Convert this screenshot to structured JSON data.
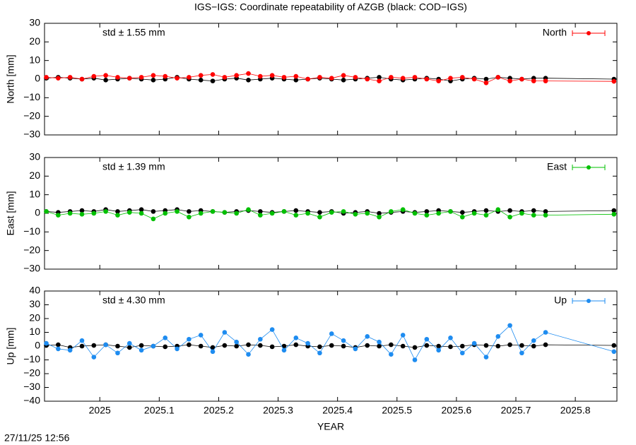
{
  "page": {
    "title": "IGS−IGS: Coordinate repeatability of AZGB (black: COD−IGS)",
    "timestamp": "27/11/25 12:56"
  },
  "chart_data": [
    {
      "type": "scatter",
      "ylabel": "North [mm]",
      "annotation": "std ± 1.55 mm",
      "legend": "upper right",
      "x": [
        2024.91,
        2024.93,
        2024.95,
        2024.97,
        2024.99,
        2025.01,
        2025.03,
        2025.05,
        2025.07,
        2025.09,
        2025.11,
        2025.13,
        2025.15,
        2025.17,
        2025.19,
        2025.21,
        2025.23,
        2025.25,
        2025.27,
        2025.29,
        2025.31,
        2025.33,
        2025.35,
        2025.37,
        2025.39,
        2025.41,
        2025.43,
        2025.45,
        2025.47,
        2025.49,
        2025.51,
        2025.53,
        2025.55,
        2025.57,
        2025.59,
        2025.61,
        2025.63,
        2025.65,
        2025.67,
        2025.69,
        2025.71,
        2025.73,
        2025.75,
        2025.865
      ],
      "xlim": [
        2024.907,
        2025.87
      ],
      "xticks": [
        2025,
        2025.1,
        2025.2,
        2025.3,
        2025.4,
        2025.5,
        2025.6,
        2025.7,
        2025.8
      ],
      "ylim": [
        -30,
        30
      ],
      "yticks": [
        {
          "value": -30,
          "label": "−30"
        },
        {
          "value": -20,
          "label": "−20"
        },
        {
          "value": -10,
          "label": "−10"
        },
        0,
        10,
        20,
        30
      ],
      "series": [
        {
          "color": "#000000",
          "values": [
            0.5,
            1,
            0.5,
            0,
            0.5,
            -0.5,
            0,
            0.5,
            0,
            -0.5,
            0,
            1,
            0,
            -0.5,
            -1,
            0,
            0.5,
            -0.5,
            0,
            0.5,
            0,
            -0.5,
            0,
            0.5,
            0,
            -0.5,
            0,
            0.5,
            1,
            0,
            -0.5,
            0,
            0.5,
            0,
            -1,
            0,
            0.5,
            0,
            1,
            0.5,
            0,
            0.5,
            0.5,
            0
          ]
        },
        {
          "name": "North",
          "color": "#ff0000",
          "values": [
            1,
            0.5,
            1,
            0,
            1.5,
            2,
            1,
            0.5,
            1,
            2,
            1.5,
            0.5,
            1,
            2,
            2.5,
            1,
            2,
            3,
            1.5,
            2,
            1,
            1.5,
            0,
            1,
            0.5,
            2,
            1,
            0,
            -1,
            1,
            0.5,
            1,
            0,
            -1,
            0.5,
            1,
            0,
            -2,
            1,
            -1,
            0,
            -1,
            -1,
            -1.2
          ]
        }
      ]
    },
    {
      "type": "scatter",
      "ylabel": "East [mm]",
      "annotation": "std ± 1.39 mm",
      "legend": "upper right",
      "x": [
        2024.91,
        2024.93,
        2024.95,
        2024.97,
        2024.99,
        2025.01,
        2025.03,
        2025.05,
        2025.07,
        2025.09,
        2025.11,
        2025.13,
        2025.15,
        2025.17,
        2025.19,
        2025.21,
        2025.23,
        2025.25,
        2025.27,
        2025.29,
        2025.31,
        2025.33,
        2025.35,
        2025.37,
        2025.39,
        2025.41,
        2025.43,
        2025.45,
        2025.47,
        2025.49,
        2025.51,
        2025.53,
        2025.55,
        2025.57,
        2025.59,
        2025.61,
        2025.63,
        2025.65,
        2025.67,
        2025.69,
        2025.71,
        2025.73,
        2025.75,
        2025.865
      ],
      "xlim": [
        2024.907,
        2025.87
      ],
      "xticks": [
        2025,
        2025.1,
        2025.2,
        2025.3,
        2025.4,
        2025.5,
        2025.6,
        2025.7,
        2025.8
      ],
      "ylim": [
        -30,
        30
      ],
      "yticks": [
        {
          "value": -30,
          "label": "−30"
        },
        {
          "value": -20,
          "label": "−20"
        },
        {
          "value": -10,
          "label": "−10"
        },
        0,
        10,
        20,
        30
      ],
      "series": [
        {
          "color": "#000000",
          "values": [
            1,
            0.5,
            1,
            1.5,
            1,
            2,
            1,
            1.5,
            2,
            1,
            1.5,
            2,
            1,
            1.5,
            1,
            0.5,
            1,
            1.5,
            1,
            0.5,
            1,
            1.5,
            1,
            0.5,
            1,
            0,
            0.5,
            1,
            0,
            0.5,
            1,
            0.5,
            1,
            1.5,
            1,
            0.5,
            1,
            1.5,
            1,
            1.5,
            1,
            1.5,
            1,
            1.5
          ]
        },
        {
          "name": "East",
          "color": "#00c000",
          "values": [
            1,
            -1,
            0,
            -0.5,
            0,
            1,
            -1,
            0.5,
            0,
            -3,
            0,
            1,
            -2,
            0,
            1,
            0.5,
            0,
            2,
            -1,
            0,
            1,
            -1,
            0,
            -2,
            0.5,
            1,
            -0.5,
            0,
            -2,
            1,
            2,
            0,
            -1,
            0,
            1,
            -2,
            0,
            -1,
            2,
            -2,
            0,
            -1,
            -1,
            -0.5
          ]
        }
      ]
    },
    {
      "type": "scatter",
      "ylabel": "Up [mm]",
      "annotation": "std ± 4.30 mm",
      "legend": "upper right",
      "xlabel": "YEAR",
      "x": [
        2024.91,
        2024.93,
        2024.95,
        2024.97,
        2024.99,
        2025.01,
        2025.03,
        2025.05,
        2025.07,
        2025.09,
        2025.11,
        2025.13,
        2025.15,
        2025.17,
        2025.19,
        2025.21,
        2025.23,
        2025.25,
        2025.27,
        2025.29,
        2025.31,
        2025.33,
        2025.35,
        2025.37,
        2025.39,
        2025.41,
        2025.43,
        2025.45,
        2025.47,
        2025.49,
        2025.51,
        2025.53,
        2025.55,
        2025.57,
        2025.59,
        2025.61,
        2025.63,
        2025.65,
        2025.67,
        2025.69,
        2025.71,
        2025.73,
        2025.75,
        2025.865
      ],
      "xlim": [
        2024.907,
        2025.87
      ],
      "xticks": [
        2025,
        2025.1,
        2025.2,
        2025.3,
        2025.4,
        2025.5,
        2025.6,
        2025.7,
        2025.8
      ],
      "ylim": [
        -40,
        40
      ],
      "yticks": [
        {
          "value": -40,
          "label": "−40"
        },
        {
          "value": -30,
          "label": "−30"
        },
        {
          "value": -20,
          "label": "−20"
        },
        {
          "value": -10,
          "label": "−10"
        },
        0,
        10,
        20,
        30,
        40
      ],
      "series": [
        {
          "color": "#000000",
          "values": [
            0.5,
            1,
            -1,
            0,
            0.5,
            1,
            0,
            -1,
            0.5,
            0,
            -0.5,
            0,
            1,
            0,
            -1,
            0.5,
            0,
            1,
            0.5,
            -0.5,
            0,
            1,
            0,
            -0.5,
            0.5,
            0,
            -1,
            0.5,
            0,
            1,
            0,
            -1,
            0.5,
            0,
            -0.5,
            0,
            1,
            0.5,
            0,
            1,
            0.5,
            0,
            1,
            0.5
          ]
        },
        {
          "name": "Up",
          "color": "#1e8cf0",
          "values": [
            2,
            -2,
            -3,
            4,
            -8,
            1,
            -5,
            2,
            -3,
            0,
            6,
            -2,
            5,
            8,
            -4,
            10,
            3,
            -6,
            5,
            12,
            -3,
            6,
            2,
            -5,
            9,
            4,
            -2,
            7,
            3,
            -6,
            8,
            -10,
            5,
            -3,
            6,
            -5,
            2,
            -8,
            7,
            15,
            -5,
            4,
            10,
            -4
          ]
        }
      ]
    }
  ]
}
